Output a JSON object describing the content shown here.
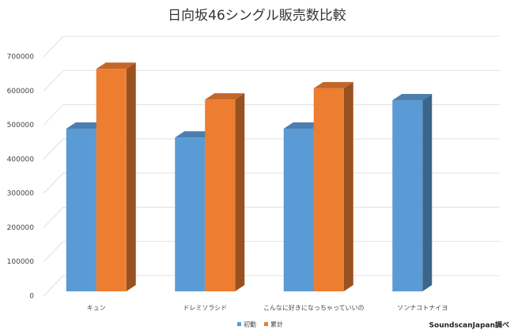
{
  "chart_data": {
    "type": "bar3d",
    "title": "日向坂46シングル販売数比較",
    "categories": [
      "キュン",
      "ドレミソラシド",
      "こんなに好きになっちゃっていいの",
      "ソンナコトナイヨ"
    ],
    "series": [
      {
        "name": "初動",
        "color": "#5b9bd5",
        "values": [
          476000,
          450000,
          476000,
          559000
        ]
      },
      {
        "name": "累計",
        "color": "#ed7d31",
        "values": [
          651000,
          561000,
          594000,
          null
        ]
      }
    ],
    "ylim": [
      0,
      700000
    ],
    "yticks": [
      0,
      100000,
      200000,
      300000,
      400000,
      500000,
      600000,
      700000
    ],
    "grid": true,
    "legend": "bottom",
    "annotation": "SoundscanJapan調べ"
  }
}
